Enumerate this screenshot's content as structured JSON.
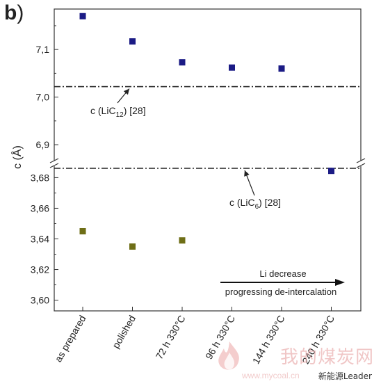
{
  "panel": {
    "label": "b",
    "paren": ")"
  },
  "chart_data": {
    "type": "scatter",
    "xlabel": "",
    "ylabel": "c (Å)",
    "categories": [
      "as prepared",
      "polished",
      "72 h 330°C",
      "96 h 330°C",
      "144 h 330°C",
      "240 h 330°C"
    ],
    "broken_y_axis": true,
    "upper_ylim": [
      6.865,
      7.185
    ],
    "lower_ylim": [
      3.593,
      3.687
    ],
    "upper_yticks": [
      6.9,
      7.0,
      7.1
    ],
    "upper_ytick_labels": [
      "6,9",
      "7,0",
      "7,1"
    ],
    "lower_yticks": [
      3.6,
      3.62,
      3.64,
      3.66,
      3.68
    ],
    "lower_ytick_labels": [
      "3,60",
      "3,62",
      "3,64",
      "3,66",
      "3,68"
    ],
    "grid": false,
    "series": [
      {
        "color": "#1b1b85",
        "values": [
          7.17,
          7.117,
          7.073,
          7.062,
          7.06,
          6.845
        ]
      },
      {
        "color": "#6e6e16",
        "values": [
          3.645,
          3.635,
          3.639
        ]
      }
    ],
    "reference_lines": [
      {
        "label_main": "c (LiC",
        "label_sub": "12",
        "label_tail": ") [28]",
        "value": 7.022
      },
      {
        "label_main": "c (LiC",
        "label_sub": "6",
        "label_tail": ") [28]",
        "value": 3.687
      }
    ],
    "arrow_annotation": {
      "line1": "Li decrease",
      "line2": "progressing de-intercalation"
    }
  },
  "watermark": {
    "main": "我的煤炭网",
    "url": "www.mycoal.cn",
    "sub": "新能源Leader"
  }
}
